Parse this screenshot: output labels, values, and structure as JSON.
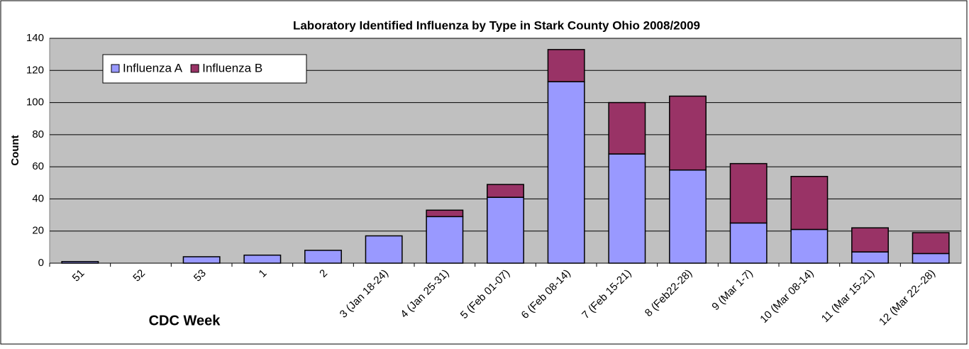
{
  "chart_data": {
    "type": "stacked_bar",
    "title": "Laboratory Identified Influenza by Type in Stark County Ohio 2008/2009",
    "x_label": "CDC Week",
    "y_label": "Count",
    "categories": [
      "51",
      "52",
      "53",
      "1",
      "2",
      "3 (Jan 18-24)",
      "4 (Jan 25-31)",
      "5 (Feb 01-07)",
      "6 (Feb 08-14)",
      "7 (Feb 15-21)",
      "8 (Feb22-28)",
      "9 (Mar 1-7)",
      "10 (Mar 08-14)",
      "11 (Mar 15-21)",
      "12 (Mar 22--28)"
    ],
    "series": [
      {
        "name": "Influenza A",
        "color": "#9999ff",
        "values": [
          1,
          0,
          4,
          5,
          8,
          17,
          29,
          41,
          113,
          68,
          58,
          25,
          21,
          7,
          6
        ]
      },
      {
        "name": "Influenza B",
        "color": "#993366",
        "values": [
          0,
          0,
          0,
          0,
          0,
          0,
          4,
          8,
          20,
          32,
          46,
          37,
          33,
          15,
          13
        ]
      }
    ],
    "ylim": [
      0,
      140
    ],
    "yticks": [
      0,
      20,
      40,
      60,
      80,
      100,
      120,
      140
    ],
    "grid": true,
    "legend": "upper left"
  }
}
